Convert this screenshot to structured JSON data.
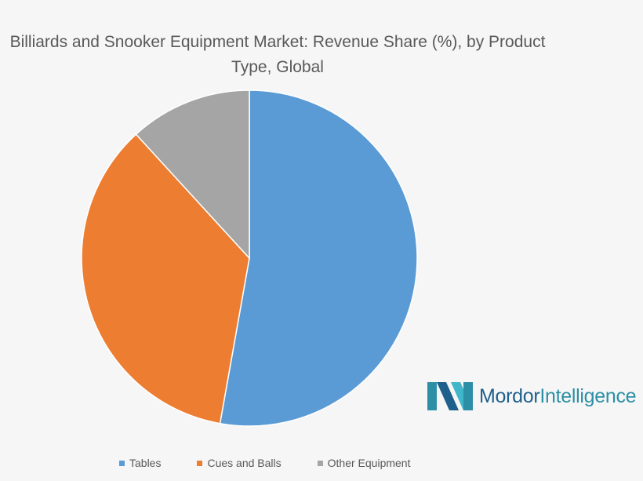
{
  "chart_data": {
    "type": "pie",
    "title": "Billiards and Snooker Equipment Market: Revenue Share (%), by Product Type, Global",
    "categories": [
      "Tables",
      "Cues and Balls",
      "Other Equipment"
    ],
    "values": [
      52.8,
      35.4,
      11.8
    ],
    "colors": [
      "#5b9bd5",
      "#ed7d31",
      "#a5a5a5"
    ],
    "legend_position": "bottom"
  },
  "logo": {
    "part1": "Mordor",
    "part2": "Intelligence"
  }
}
